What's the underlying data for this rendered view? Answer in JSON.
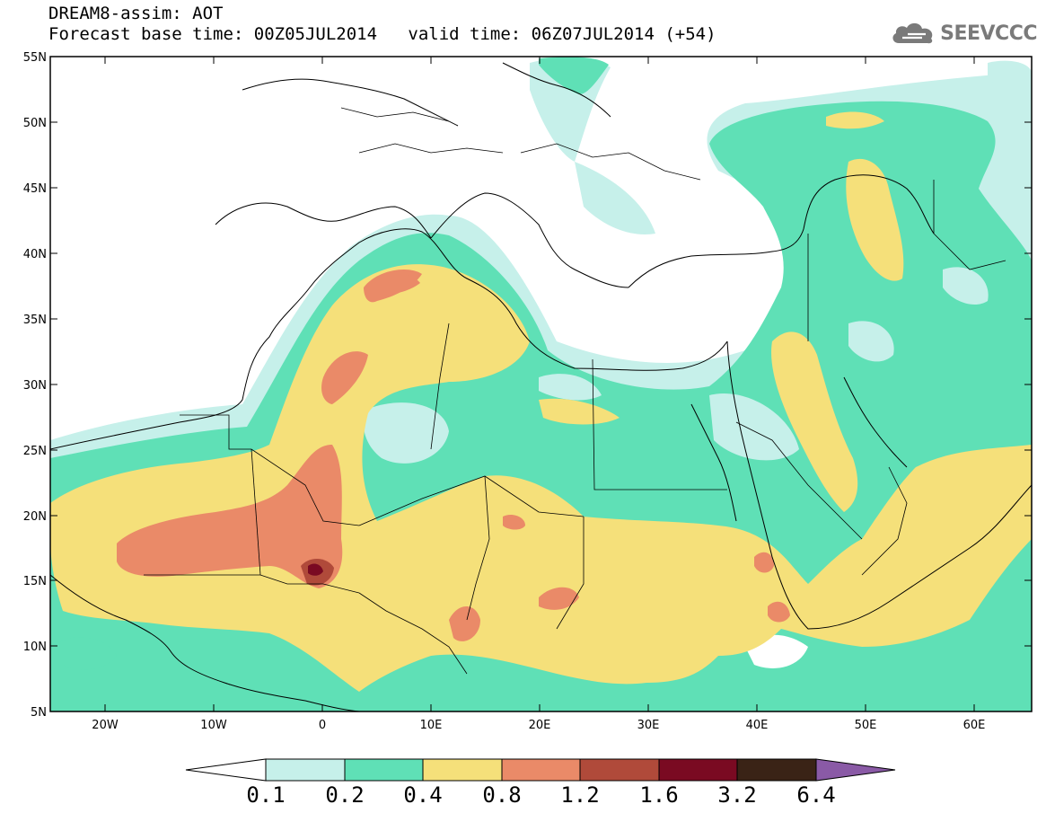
{
  "header": {
    "title": "DREAM8-assim: AOT",
    "base_time_label": "Forecast base time: 00Z05JUL2014",
    "valid_time_label": "valid time: 06Z07JUL2014 (+54)",
    "logo_text": "SEEVCCC"
  },
  "map": {
    "lat_ticks": [
      "55N",
      "50N",
      "45N",
      "40N",
      "35N",
      "30N",
      "25N",
      "20N",
      "15N",
      "10N",
      "5N"
    ],
    "lon_ticks": [
      "20W",
      "10W",
      "0",
      "10E",
      "20E",
      "30E",
      "40E",
      "50E",
      "60E"
    ],
    "extent": {
      "lon_min": -25,
      "lon_max": 65,
      "lat_min": 5,
      "lat_max": 55
    }
  },
  "colorbar": {
    "labels": [
      "0.1",
      "0.2",
      "0.4",
      "0.8",
      "1.2",
      "1.6",
      "3.2",
      "6.4"
    ],
    "colors": [
      "#c6f0ea",
      "#5fe0b6",
      "#f5e07a",
      "#ea8a68",
      "#b04a3a",
      "#7a0a22",
      "#3a2316",
      "#8a5aa6"
    ],
    "under_color": "#ffffff"
  }
}
